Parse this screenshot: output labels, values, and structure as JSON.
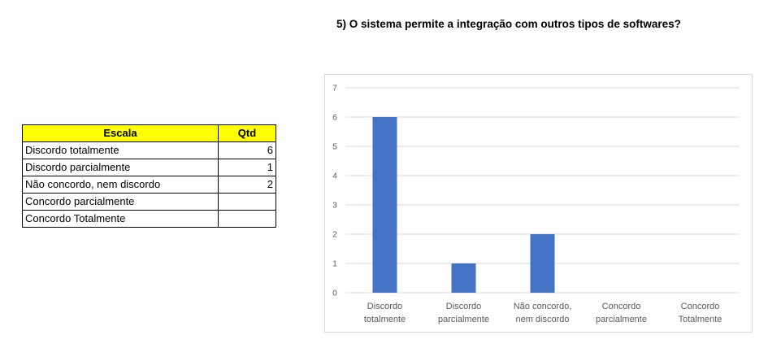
{
  "question": "5) O sistema permite a integração com outros tipos de softwares?",
  "table": {
    "headers": [
      "Escala",
      "Qtd"
    ],
    "rows": [
      {
        "escala": "Discordo totalmente",
        "qtd": "6"
      },
      {
        "escala": "Discordo parcialmente",
        "qtd": "1"
      },
      {
        "escala": "Não concordo, nem discordo",
        "qtd": "2"
      },
      {
        "escala": "Concordo parcialmente",
        "qtd": ""
      },
      {
        "escala": "Concordo Totalmente",
        "qtd": ""
      }
    ]
  },
  "chart_data": {
    "type": "bar",
    "title": "",
    "xlabel": "",
    "ylabel": "",
    "categories": [
      [
        "Discordo",
        "totalmente"
      ],
      [
        "Discordo",
        "parcialmente"
      ],
      [
        "Não concordo,",
        "nem discordo"
      ],
      [
        "Concordo",
        "parcialmente"
      ],
      [
        "Concordo",
        "Totalmente"
      ]
    ],
    "values": [
      6,
      1,
      2,
      null,
      null
    ],
    "ylim": [
      0,
      7
    ],
    "yticks": [
      0,
      1,
      2,
      3,
      4,
      5,
      6,
      7
    ],
    "grid": true,
    "bar_color": "#4472c4",
    "grid_color": "#d9d9d9"
  },
  "colors": {
    "header_fill": "#ffff00"
  }
}
